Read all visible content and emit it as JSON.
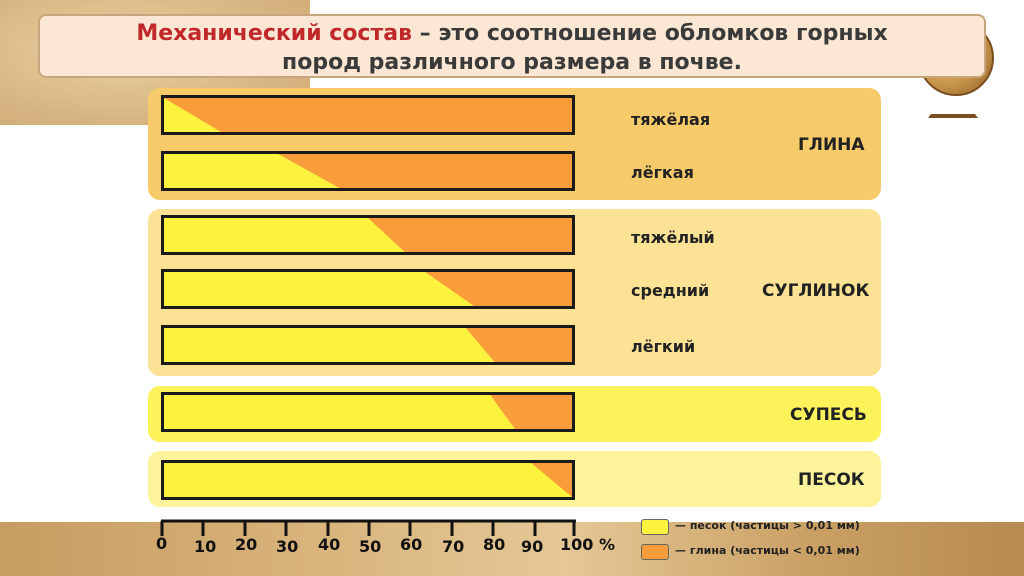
{
  "title": {
    "accent": "Механический состав",
    "rest": " – это соотношение обломков горных",
    "line2": "пород различного размера в почве",
    "dot": "."
  },
  "colors": {
    "sand": "#fdf23e",
    "clay": "#f99d3b"
  },
  "groups": {
    "clay": "ГЛИНА",
    "loam": "СУГЛИНОК",
    "supes": "СУПЕСЬ",
    "sand": "ПЕСОК"
  },
  "bars": [
    {
      "label": "тяжёлая",
      "group": "clay",
      "sand_top_pct": 0,
      "sand_bottom_pct": 14
    },
    {
      "label": "лёгкая",
      "group": "clay",
      "sand_top_pct": 28,
      "sand_bottom_pct": 43
    },
    {
      "label": "тяжёлый",
      "group": "loam",
      "sand_top_pct": 50,
      "sand_bottom_pct": 59
    },
    {
      "label": "средний",
      "group": "loam",
      "sand_top_pct": 64,
      "sand_bottom_pct": 76
    },
    {
      "label": "лёгкий",
      "group": "loam",
      "sand_top_pct": 74,
      "sand_bottom_pct": 81
    },
    {
      "label": "",
      "group": "supes",
      "sand_top_pct": 80,
      "sand_bottom_pct": 86
    },
    {
      "label": "",
      "group": "sand",
      "sand_top_pct": 90,
      "sand_bottom_pct": 100
    }
  ],
  "axis": {
    "ticks": [
      "0",
      "10",
      "20",
      "30",
      "40",
      "50",
      "60",
      "70",
      "80",
      "90",
      "100 %"
    ]
  },
  "legend": {
    "sand": "— песок (частицы > 0,01 мм)",
    "clay": "— глина (частицы < 0,01 мм)"
  }
}
